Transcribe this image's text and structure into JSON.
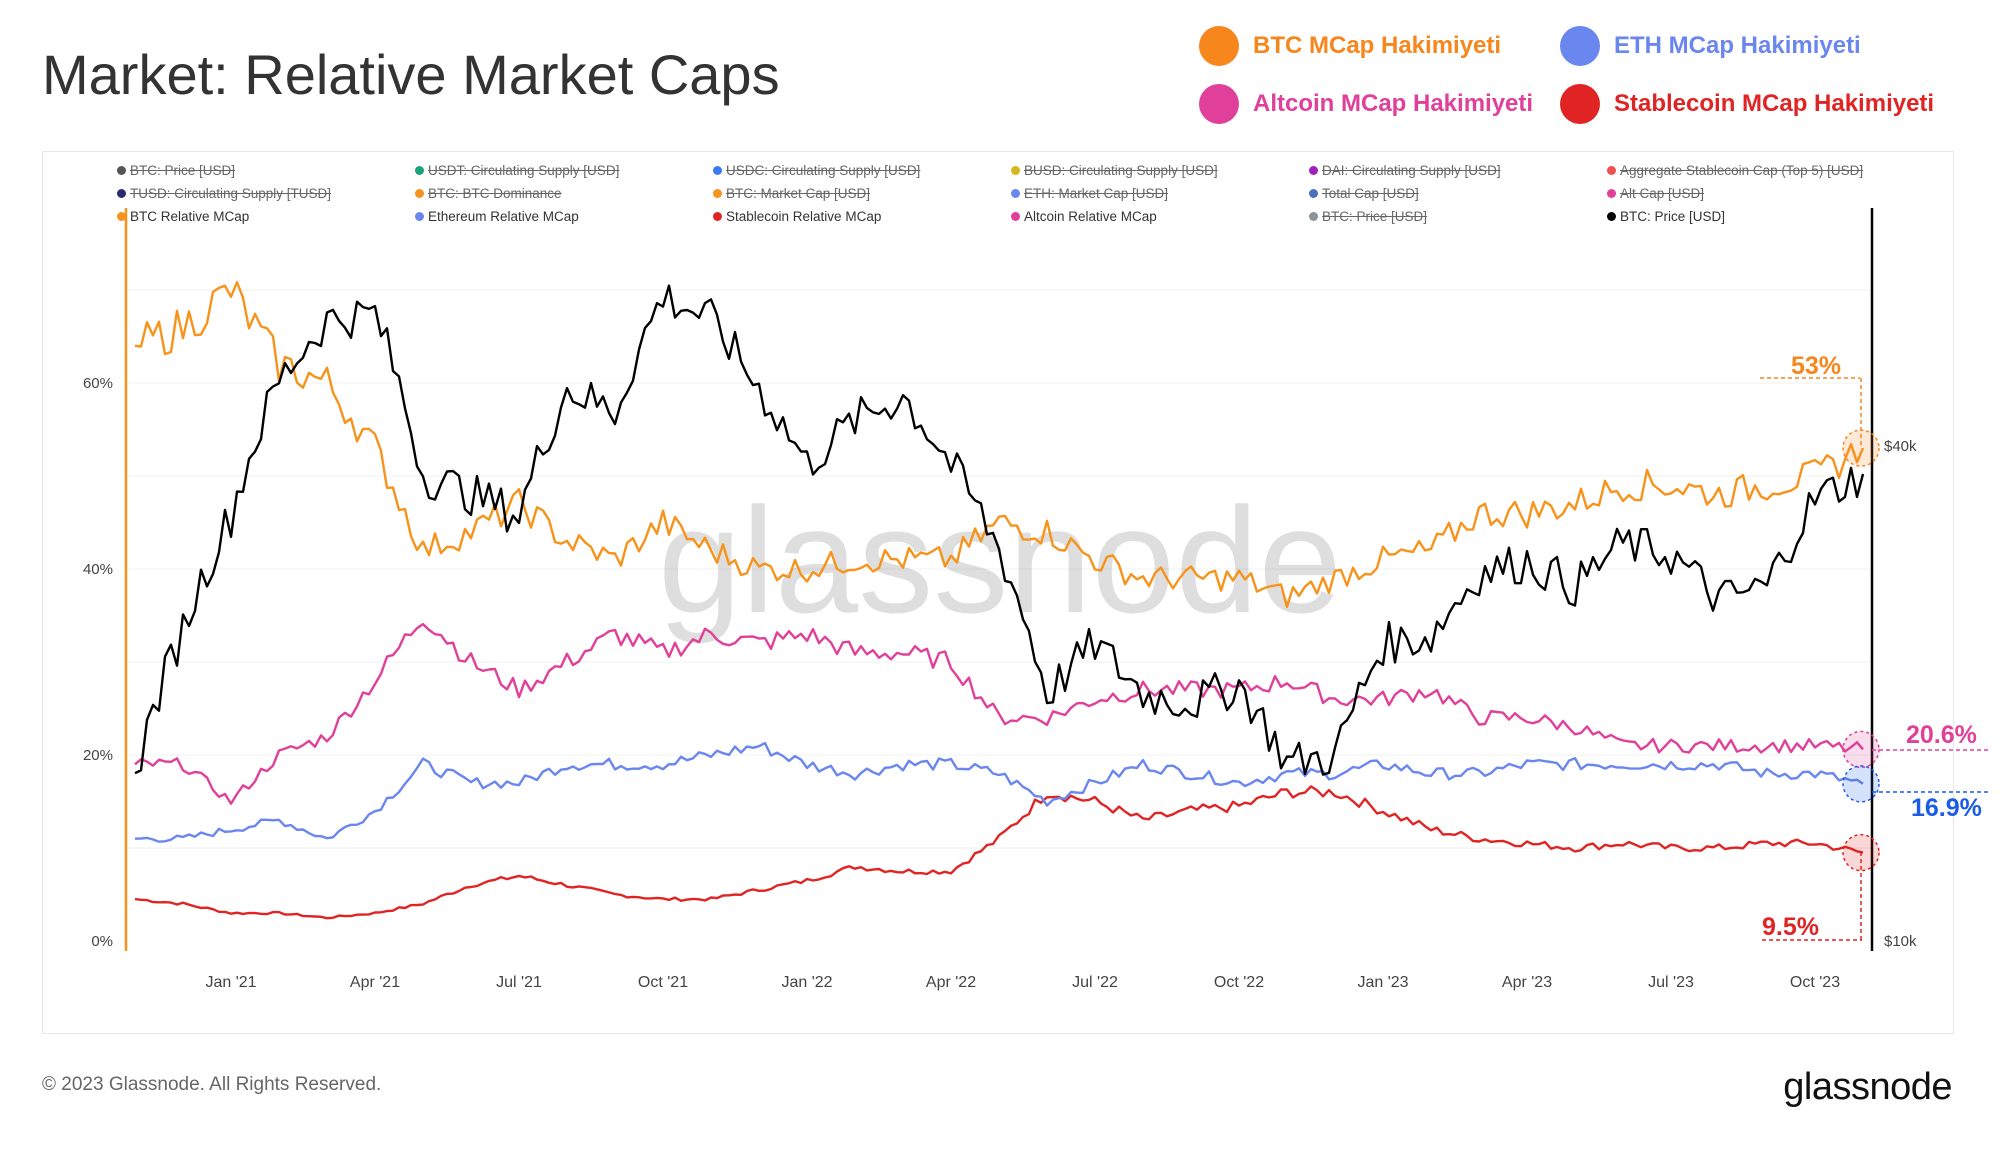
{
  "title": "Market: Relative Market Caps",
  "top_legend": [
    {
      "label": "BTC MCap Hakimiyeti",
      "color": "#f7861c"
    },
    {
      "label": "ETH MCap Hakimiyeti",
      "color": "#6a86ef"
    },
    {
      "label": "Altcoin MCap Hakimiyeti",
      "color": "#e0409a"
    },
    {
      "label": "Stablecoin MCap Hakimiyeti",
      "color": "#e02424"
    }
  ],
  "series_legend": [
    {
      "label": "BTC: Price [USD]",
      "color": "#555555",
      "hidden": true
    },
    {
      "label": "USDT: Circulating Supply [USD]",
      "color": "#1aa37a",
      "hidden": true
    },
    {
      "label": "USDC: Circulating Supply [USD]",
      "color": "#3a7bf0",
      "hidden": true
    },
    {
      "label": "BUSD: Circulating Supply [USD]",
      "color": "#d4b81c",
      "hidden": true
    },
    {
      "label": "DAI: Circulating Supply [USD]",
      "color": "#a020c0",
      "hidden": true
    },
    {
      "label": "Aggregate Stablecoin Cap (Top 5) [USD]",
      "color": "#f05050",
      "hidden": true
    },
    {
      "label": "TUSD: Circulating Supply [TUSD]",
      "color": "#2a2a70",
      "hidden": true
    },
    {
      "label": "BTC: BTC Dominance",
      "color": "#f7931a",
      "hidden": true
    },
    {
      "label": "BTC: Market Cap [USD]",
      "color": "#f7931a",
      "hidden": true
    },
    {
      "label": "ETH: Market Cap [USD]",
      "color": "#6a86ef",
      "hidden": true
    },
    {
      "label": "Total Cap [USD]",
      "color": "#4a70c0",
      "hidden": true
    },
    {
      "label": "Alt Cap [USD]",
      "color": "#e0409a",
      "hidden": true
    },
    {
      "label": "BTC Relative MCap",
      "color": "#f7931a",
      "hidden": false
    },
    {
      "label": "Ethereum Relative MCap",
      "color": "#6a86ef",
      "hidden": false
    },
    {
      "label": "Stablecoin Relative MCap",
      "color": "#e02424",
      "hidden": false
    },
    {
      "label": "Altcoin Relative MCap",
      "color": "#e0409a",
      "hidden": false
    },
    {
      "label": "BTC: Price [USD]",
      "color": "#8a9499",
      "hidden": true
    },
    {
      "label": "BTC: Price [USD]",
      "color": "#000000",
      "hidden": false
    }
  ],
  "chart_data": {
    "type": "line",
    "x": [
      "Nov 20",
      "Dec 20",
      "Jan 21",
      "Feb 21",
      "Mar 21",
      "Apr 21",
      "May 21",
      "Jun 21",
      "Jul 21",
      "Aug 21",
      "Sep 21",
      "Oct 21",
      "Nov 21",
      "Dec 21",
      "Jan 22",
      "Feb 22",
      "Mar 22",
      "Apr 22",
      "May 22",
      "Jun 22",
      "Jul 22",
      "Aug 22",
      "Sep 22",
      "Oct 22",
      "Nov 22",
      "Dec 22",
      "Jan 23",
      "Feb 23",
      "Mar 23",
      "Apr 23",
      "May 23",
      "Jun 23",
      "Jul 23",
      "Aug 23",
      "Sep 23",
      "Oct 23",
      "Nov 23"
    ],
    "x_ticks": [
      {
        "label": "Jan '21",
        "index": 2
      },
      {
        "label": "Apr '21",
        "index": 5
      },
      {
        "label": "Jul '21",
        "index": 8
      },
      {
        "label": "Oct '21",
        "index": 11
      },
      {
        "label": "Jan '22",
        "index": 14
      },
      {
        "label": "Apr '22",
        "index": 17
      },
      {
        "label": "Jul '22",
        "index": 20
      },
      {
        "label": "Oct '22",
        "index": 23
      },
      {
        "label": "Jan '23",
        "index": 26
      },
      {
        "label": "Apr '23",
        "index": 29
      },
      {
        "label": "Jul '23",
        "index": 32
      },
      {
        "label": "Oct '23",
        "index": 35
      }
    ],
    "y_left": {
      "ticks": [
        {
          "v": 0,
          "label": "0%"
        },
        {
          "v": 20,
          "label": "20%"
        },
        {
          "v": 40,
          "label": "40%"
        },
        {
          "v": 60,
          "label": "60%"
        }
      ],
      "range": [
        0,
        80
      ]
    },
    "y_right": {
      "scale": "log",
      "ticks": [
        {
          "v": 10,
          "label": "$10k"
        },
        {
          "v": 40,
          "label": "$40k"
        }
      ]
    },
    "series": [
      {
        "name": "BTC Relative MCap",
        "axis": "left",
        "color": "#f7931a",
        "values": [
          64,
          66,
          70,
          62,
          60,
          53,
          42,
          44,
          47,
          43,
          41,
          45,
          42,
          40,
          40,
          41,
          41,
          41,
          45,
          44,
          41,
          39,
          39,
          39,
          37,
          39,
          41,
          42,
          46,
          46,
          47,
          49,
          49,
          48,
          49,
          50,
          53
        ]
      },
      {
        "name": "Altcoin Relative MCap",
        "axis": "left",
        "color": "#e0409a",
        "values": [
          19,
          19,
          15,
          20,
          22,
          28,
          35,
          30,
          27,
          30,
          33,
          31,
          33,
          32,
          33,
          31,
          31,
          30,
          24,
          24,
          26,
          27,
          27,
          27,
          28,
          26,
          26,
          27,
          24,
          24,
          23,
          21,
          21,
          21,
          21,
          21,
          20.6
        ]
      },
      {
        "name": "Ethereum Relative MCap",
        "axis": "left",
        "color": "#6a86ef",
        "values": [
          11,
          11,
          12,
          13,
          11,
          14,
          19,
          17,
          17,
          19,
          19,
          19,
          20,
          21,
          19,
          18,
          19,
          19,
          18,
          15,
          17,
          19,
          18,
          17,
          18,
          18,
          19,
          18,
          18,
          19,
          19,
          19,
          19,
          19,
          18,
          18,
          16.9
        ]
      },
      {
        "name": "Stablecoin Relative MCap",
        "axis": "left",
        "color": "#e02424",
        "values": [
          4.5,
          4,
          3,
          3,
          2.5,
          3,
          4,
          6,
          7,
          6,
          5,
          4.5,
          4.5,
          5.5,
          6.5,
          8,
          7.5,
          7.5,
          11,
          16,
          15,
          13,
          14,
          14.5,
          16,
          16,
          14,
          12,
          11,
          10.5,
          10,
          10.5,
          10,
          10,
          10.5,
          10.5,
          9.5
        ]
      },
      {
        "name": "BTC: Price [USD]",
        "axis": "right",
        "unit": "k USD",
        "color": "#000000",
        "values": [
          16,
          24,
          33,
          48,
          57,
          58,
          37,
          35,
          33,
          47,
          44,
          61,
          57,
          47,
          38,
          43,
          46,
          38,
          30,
          20,
          23,
          20,
          19.5,
          20.5,
          16.5,
          16.8,
          23,
          23.5,
          28,
          29,
          27,
          30.5,
          29.5,
          26,
          27,
          34.5,
          37
        ]
      }
    ],
    "annotations": [
      {
        "text": "53%",
        "series": "BTC Relative MCap",
        "color": "#f7861c"
      },
      {
        "text": "20.6%",
        "series": "Altcoin Relative MCap",
        "color": "#e0409a"
      },
      {
        "text": "16.9%",
        "series": "Ethereum Relative MCap",
        "color": "#1a5ce8"
      },
      {
        "text": "9.5%",
        "series": "Stablecoin Relative MCap",
        "color": "#e02424"
      }
    ],
    "watermark": "glassnode"
  },
  "footer": {
    "copyright": "© 2023 Glassnode. All Rights Reserved.",
    "logo": "glassnode"
  }
}
